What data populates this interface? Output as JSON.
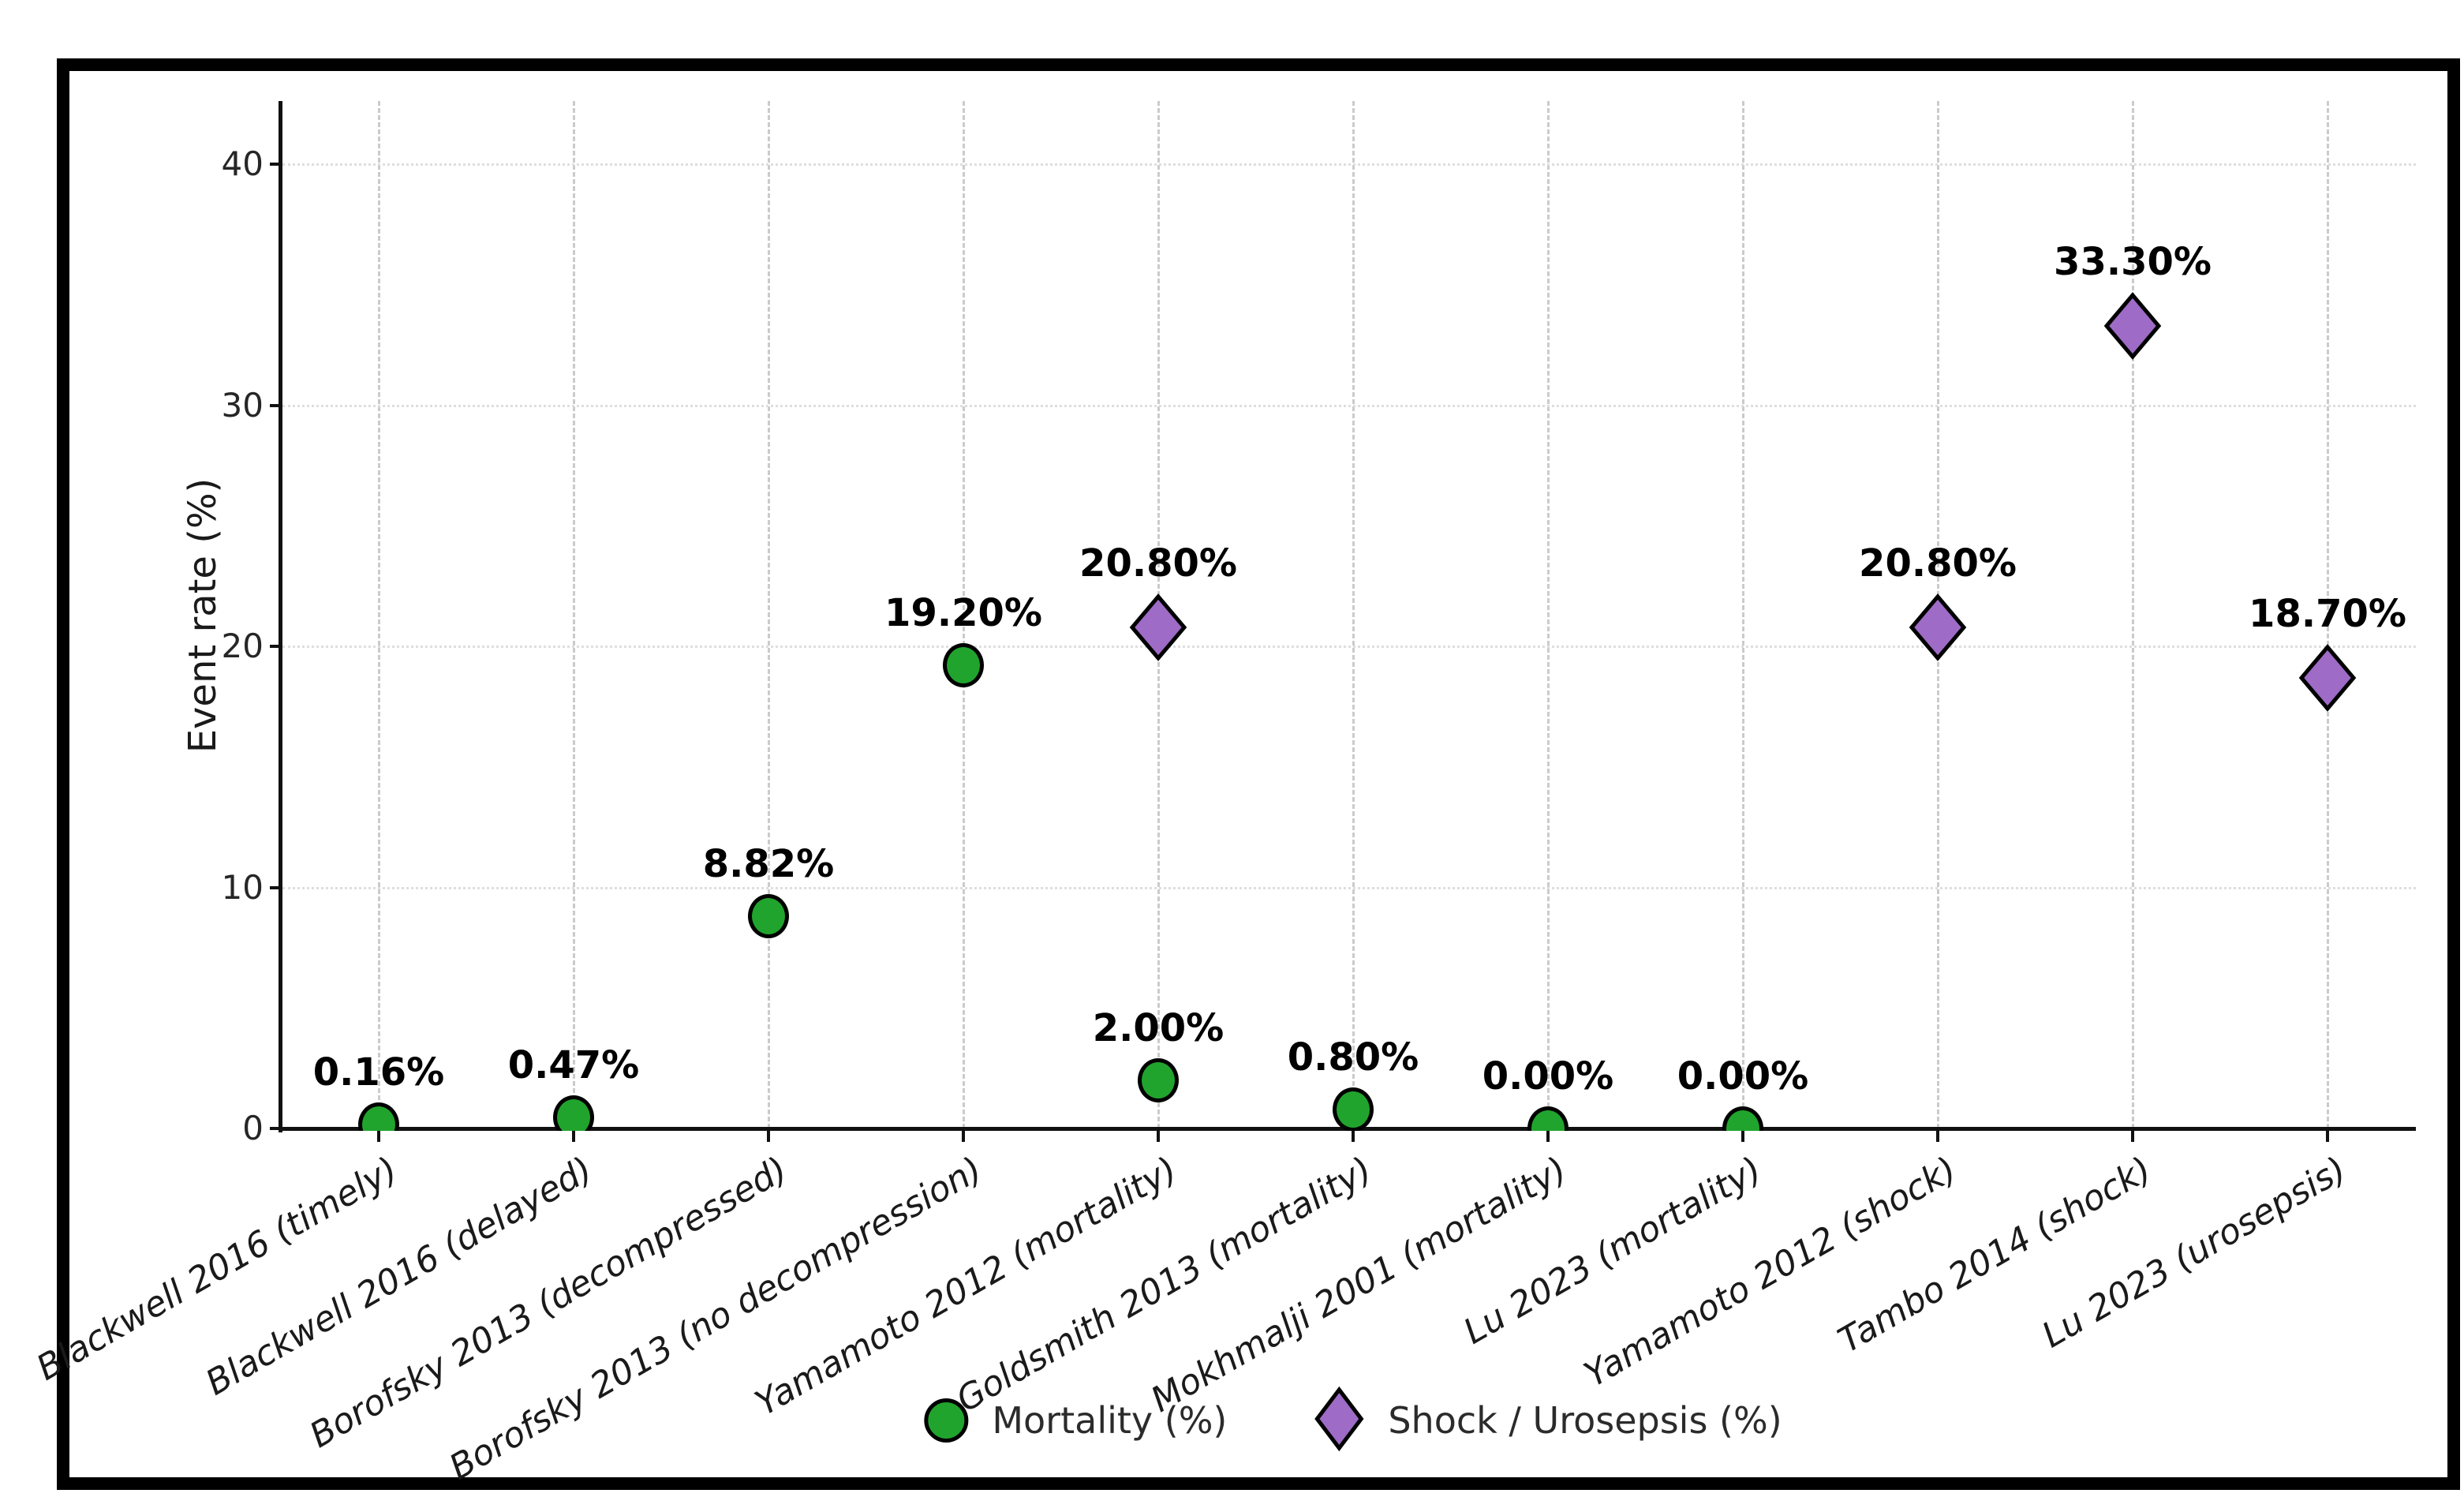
{
  "colors": {
    "mortality_fill": "#21A42D",
    "shock_fill": "#9E6BC6",
    "marker_edge": "#000000",
    "frame": "#000000",
    "background": "#ffffff"
  },
  "chart_data": {
    "type": "scatter",
    "title": "",
    "xlabel": "",
    "ylabel": "Event rate (%)",
    "ylim": [
      0,
      43
    ],
    "yticks": [
      0,
      10,
      20,
      30,
      40
    ],
    "grid": {
      "vertical": "dashed",
      "horizontal": "dotted"
    },
    "legend_position": "bottom-center",
    "categories": [
      "Blackwell 2016 (timely)",
      "Blackwell 2016 (delayed)",
      "Borofsky 2013 (decompressed)",
      "Borofsky 2013 (no decompression)",
      "Yamamoto 2012 (mortality)",
      "Goldsmith 2013 (mortality)",
      "Mokhmalji 2001 (mortality)",
      "Lu 2023 (mortality)",
      "Yamamoto 2012 (shock)",
      "Tambo 2014 (shock)",
      "Lu 2023 (urosepsis)"
    ],
    "series": [
      {
        "name": "Mortality (%)",
        "marker": "circle",
        "fill": "#21A42D",
        "edge": "#000000",
        "points": [
          {
            "category": "Blackwell 2016 (timely)",
            "value": 0.16,
            "label": "0.16%"
          },
          {
            "category": "Blackwell 2016 (delayed)",
            "value": 0.47,
            "label": "0.47%"
          },
          {
            "category": "Borofsky 2013 (decompressed)",
            "value": 8.82,
            "label": "8.82%"
          },
          {
            "category": "Borofsky 2013 (no decompression)",
            "value": 19.2,
            "label": "19.20%"
          },
          {
            "category": "Yamamoto 2012 (mortality)",
            "value": 2.0,
            "label": "2.00%"
          },
          {
            "category": "Goldsmith 2013 (mortality)",
            "value": 0.8,
            "label": "0.80%"
          },
          {
            "category": "Mokhmalji 2001 (mortality)",
            "value": 0.0,
            "label": "0.00%"
          },
          {
            "category": "Lu 2023 (mortality)",
            "value": 0.0,
            "label": "0.00%"
          }
        ]
      },
      {
        "name": "Shock / Urosepsis (%)",
        "marker": "diamond",
        "fill": "#9E6BC6",
        "edge": "#000000",
        "points": [
          {
            "category": "Yamamoto 2012 (mortality)",
            "value": 20.8,
            "label": "20.80%"
          },
          {
            "category": "Yamamoto 2012 (shock)",
            "value": 20.8,
            "label": "20.80%"
          },
          {
            "category": "Tambo 2014 (shock)",
            "value": 33.3,
            "label": "33.30%"
          },
          {
            "category": "Lu 2023 (urosepsis)",
            "value": 18.7,
            "label": "18.70%"
          }
        ]
      }
    ]
  },
  "legend": {
    "items": [
      {
        "label": "Mortality (%)",
        "marker": "circle"
      },
      {
        "label": "Shock / Urosepsis (%)",
        "marker": "diamond"
      }
    ]
  }
}
